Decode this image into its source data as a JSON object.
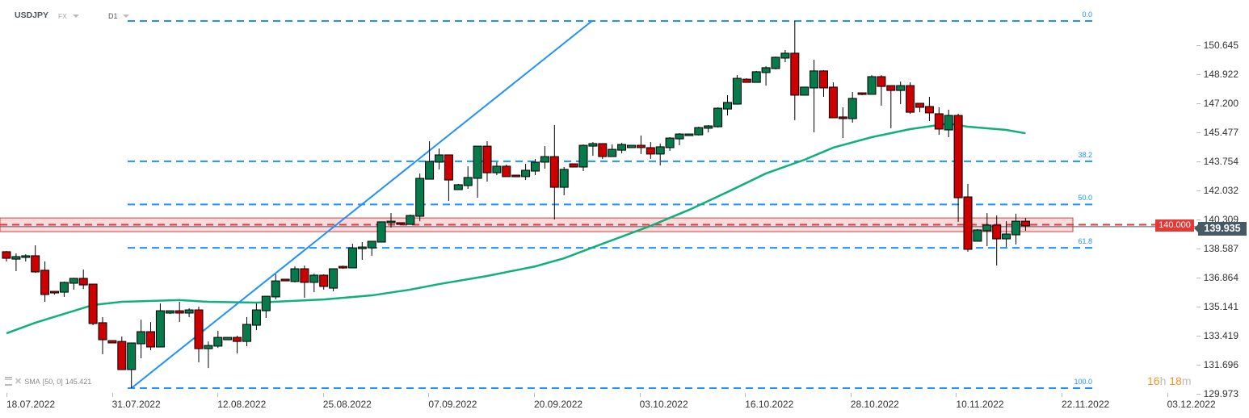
{
  "header": {
    "symbol": "USDJPY",
    "market": "FX",
    "timeframe": "D1"
  },
  "indicator": {
    "name": "SMA",
    "params": "[50, 0]",
    "value": "145.421",
    "color": "#10b07a"
  },
  "timer": {
    "hours": "16",
    "hours_unit": "h",
    "minutes": "18",
    "minutes_unit": "m"
  },
  "level": {
    "label": "140.000",
    "value": 140.0,
    "color": "#e53935"
  },
  "current_price": {
    "label": "139.935",
    "value": 139.935
  },
  "chart_data": {
    "type": "candlestick",
    "symbol": "USDJPY",
    "y_ticks": [
      "150.645",
      "148.922",
      "147.200",
      "145.477",
      "143.754",
      "142.032",
      "140.309",
      "138.587",
      "136.864",
      "135.141",
      "133.419",
      "131.696",
      "129.973"
    ],
    "x_ticks": [
      "18.07.2022",
      "31.07.2022",
      "12.08.2022",
      "25.08.2022",
      "07.09.2022",
      "20.09.2022",
      "03.10.2022",
      "16.10.2022",
      "28.10.2022",
      "10.11.2022",
      "22.11.2022",
      "03.12.2022"
    ],
    "ylim": [
      129.973,
      150.645
    ],
    "colors": {
      "up": "#077a4c",
      "down": "#cc0000",
      "fib": "#1e90ff",
      "trendline": "#1e90ff",
      "sma": "#10b07a",
      "zone": "#fadadd"
    },
    "ohlc": [
      [
        138.4,
        138.44,
        137.82,
        138.01
      ],
      [
        137.96,
        138.3,
        137.25,
        138.11
      ],
      [
        138.06,
        138.25,
        137.82,
        138.16
      ],
      [
        138.16,
        138.78,
        137.15,
        137.2
      ],
      [
        137.3,
        137.82,
        135.43,
        135.86
      ],
      [
        136.05,
        136.05,
        135.86,
        135.96
      ],
      [
        136.0,
        136.63,
        135.72,
        136.58
      ],
      [
        136.53,
        136.85,
        136.15,
        136.82
      ],
      [
        136.82,
        137.34,
        136.19,
        136.43
      ],
      [
        136.48,
        136.48,
        134.04,
        134.14
      ],
      [
        134.19,
        134.52,
        132.32,
        133.18
      ],
      [
        133.13,
        133.13,
        132.99,
        132.99
      ],
      [
        133.08,
        133.37,
        131.41,
        131.41
      ],
      [
        131.41,
        132.99,
        130.31,
        132.99
      ],
      [
        132.94,
        134.37,
        132.08,
        133.66
      ],
      [
        133.66,
        134.23,
        132.56,
        132.75
      ],
      [
        132.75,
        135.33,
        132.75,
        134.9
      ],
      [
        134.76,
        134.9,
        134.71,
        134.9
      ],
      [
        134.9,
        135.43,
        134.23,
        134.76
      ],
      [
        134.76,
        135.05,
        134.52,
        134.95
      ],
      [
        134.95,
        135.14,
        131.84,
        132.65
      ],
      [
        132.65,
        133.08,
        131.5,
        132.84
      ],
      [
        132.8,
        133.71,
        132.7,
        133.32
      ],
      [
        133.18,
        133.32,
        133.18,
        133.32
      ],
      [
        133.32,
        133.42,
        132.37,
        133.08
      ],
      [
        133.08,
        134.52,
        132.8,
        134.09
      ],
      [
        134.04,
        135.33,
        133.75,
        134.95
      ],
      [
        134.9,
        135.76,
        134.47,
        135.76
      ],
      [
        135.72,
        137.06,
        135.57,
        136.67
      ],
      [
        136.77,
        136.77,
        136.67,
        136.67
      ],
      [
        136.63,
        137.53,
        136.58,
        137.39
      ],
      [
        137.39,
        137.58,
        135.67,
        136.58
      ],
      [
        136.58,
        137.1,
        136.0,
        137.01
      ],
      [
        137.01,
        137.06,
        136.15,
        136.34
      ],
      [
        136.24,
        137.39,
        136.05,
        137.39
      ],
      [
        137.53,
        137.58,
        137.39,
        137.44
      ],
      [
        137.44,
        138.87,
        137.44,
        138.63
      ],
      [
        138.58,
        138.97,
        137.92,
        138.68
      ],
      [
        138.63,
        139.02,
        138.16,
        139.02
      ],
      [
        138.97,
        140.17,
        138.97,
        140.17
      ],
      [
        140.12,
        140.69,
        139.83,
        140.21
      ],
      [
        140.12,
        140.12,
        140.02,
        140.02
      ],
      [
        140.02,
        140.6,
        140.02,
        140.55
      ],
      [
        140.5,
        143.04,
        140.21,
        142.75
      ],
      [
        142.7,
        144.95,
        142.7,
        143.75
      ],
      [
        143.71,
        144.52,
        143.28,
        144.14
      ],
      [
        144.14,
        144.14,
        141.41,
        142.65
      ],
      [
        142.08,
        142.42,
        142.08,
        142.37
      ],
      [
        142.32,
        143.47,
        142.13,
        142.8
      ],
      [
        142.75,
        144.66,
        141.6,
        144.66
      ],
      [
        144.66,
        144.95,
        142.56,
        143.08
      ],
      [
        143.08,
        143.71,
        142.94,
        143.47
      ],
      [
        143.47,
        143.56,
        142.85,
        142.85
      ],
      [
        142.94,
        142.94,
        142.85,
        142.85
      ],
      [
        142.85,
        143.61,
        142.65,
        143.23
      ],
      [
        143.18,
        143.9,
        142.94,
        143.71
      ],
      [
        143.71,
        144.66,
        143.32,
        144.04
      ],
      [
        144.04,
        145.91,
        140.31,
        142.22
      ],
      [
        142.22,
        143.42,
        141.75,
        143.28
      ],
      [
        143.61,
        143.61,
        143.42,
        143.42
      ],
      [
        143.42,
        144.76,
        143.18,
        144.71
      ],
      [
        144.66,
        144.9,
        144.09,
        144.81
      ],
      [
        144.81,
        144.81,
        143.9,
        144.04
      ],
      [
        144.04,
        144.76,
        144.04,
        144.47
      ],
      [
        144.42,
        144.86,
        144.23,
        144.76
      ],
      [
        144.57,
        144.71,
        144.57,
        144.71
      ],
      [
        144.71,
        145.29,
        144.19,
        144.57
      ],
      [
        144.57,
        144.9,
        143.9,
        144.19
      ],
      [
        144.19,
        144.81,
        143.52,
        144.62
      ],
      [
        144.57,
        145.19,
        144.38,
        145.14
      ],
      [
        145.09,
        145.43,
        144.71,
        145.38
      ],
      [
        145.29,
        145.38,
        145.29,
        145.38
      ],
      [
        145.33,
        145.81,
        145.29,
        145.76
      ],
      [
        145.72,
        145.91,
        145.48,
        145.86
      ],
      [
        145.81,
        146.96,
        145.76,
        146.91
      ],
      [
        146.86,
        147.68,
        146.48,
        147.25
      ],
      [
        147.15,
        148.87,
        147.15,
        148.68
      ],
      [
        148.63,
        148.68,
        148.44,
        148.44
      ],
      [
        148.44,
        149.12,
        148.44,
        149.07
      ],
      [
        149.02,
        149.4,
        148.25,
        149.31
      ],
      [
        149.26,
        149.97,
        149.21,
        149.93
      ],
      [
        149.88,
        150.36,
        149.64,
        150.17
      ],
      [
        150.17,
        152.08,
        146.2,
        147.68
      ],
      [
        147.68,
        148.16,
        147.68,
        148.16
      ],
      [
        148.11,
        149.78,
        145.48,
        149.12
      ],
      [
        149.12,
        149.16,
        147.58,
        148.11
      ],
      [
        148.16,
        148.44,
        146.34,
        146.34
      ],
      [
        146.39,
        146.96,
        145.14,
        146.29
      ],
      [
        146.29,
        147.87,
        146.05,
        147.49
      ],
      [
        147.82,
        147.82,
        147.68,
        147.73
      ],
      [
        147.73,
        148.87,
        147.73,
        148.78
      ],
      [
        148.78,
        148.87,
        147.06,
        148.2
      ],
      [
        148.25,
        148.25,
        145.72,
        147.96
      ],
      [
        147.96,
        148.49,
        147.15,
        148.25
      ],
      [
        148.25,
        148.44,
        146.58,
        146.67
      ],
      [
        147.2,
        147.2,
        146.67,
        146.96
      ],
      [
        147.01,
        147.58,
        146.15,
        146.63
      ],
      [
        146.58,
        146.96,
        145.33,
        145.67
      ],
      [
        145.62,
        146.82,
        145.19,
        146.48
      ],
      [
        146.48,
        146.58,
        140.17,
        141.6
      ],
      [
        141.65,
        142.42,
        138.4,
        138.54
      ],
      [
        139.02,
        139.74,
        139.02,
        139.69
      ],
      [
        139.64,
        140.69,
        138.73,
        139.98
      ],
      [
        139.98,
        140.55,
        137.58,
        139.16
      ],
      [
        139.16,
        140.21,
        138.68,
        139.45
      ],
      [
        139.4,
        140.65,
        138.83,
        140.21
      ],
      [
        140.21,
        140.4,
        139.64,
        139.935
      ]
    ],
    "sma": [
      [
        0,
        133.56
      ],
      [
        3,
        134.19
      ],
      [
        9,
        135.24
      ],
      [
        12,
        135.43
      ],
      [
        18,
        135.53
      ],
      [
        21,
        135.43
      ],
      [
        26,
        135.38
      ],
      [
        33,
        135.57
      ],
      [
        38,
        135.81
      ],
      [
        42,
        136.15
      ],
      [
        45,
        136.48
      ],
      [
        50,
        136.96
      ],
      [
        55,
        137.53
      ],
      [
        58,
        138.01
      ],
      [
        62,
        138.87
      ],
      [
        67,
        139.93
      ],
      [
        71,
        140.88
      ],
      [
        75,
        141.94
      ],
      [
        79,
        143.04
      ],
      [
        83,
        143.85
      ],
      [
        86,
        144.57
      ],
      [
        90,
        145.19
      ],
      [
        94,
        145.67
      ],
      [
        98,
        146.0
      ],
      [
        100,
        145.81
      ],
      [
        104,
        145.62
      ],
      [
        106,
        145.421
      ]
    ],
    "fibonacci": [
      {
        "label": "0.0",
        "price": 152.08
      },
      {
        "label": "38.2",
        "price": 143.76
      },
      {
        "label": "50.0",
        "price": 141.2
      },
      {
        "label": "61.8",
        "price": 138.63
      },
      {
        "label": "100.0",
        "price": 130.31
      }
    ],
    "trendline": [
      [
        13,
        130.31
      ],
      [
        60.9,
        152.08
      ]
    ],
    "support_zone": [
      139.59,
      140.4
    ]
  }
}
